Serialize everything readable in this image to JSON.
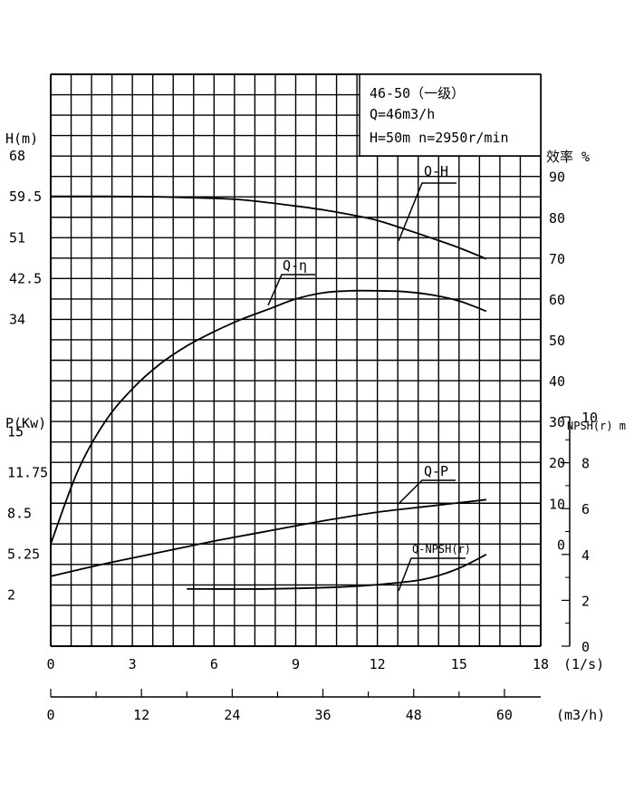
{
  "chart_data": {
    "type": "line",
    "info_box": [
      "46-50（一级）",
      "Q=46m3/h",
      "H=50m  n=2950r/min"
    ],
    "x_axes": {
      "flow_ls": {
        "label": "(1/s)",
        "ticks": [
          "0",
          "3",
          "6",
          "9",
          "12",
          "15",
          "18"
        ],
        "range": [
          0,
          18
        ]
      },
      "flow_m3h": {
        "label": "(m3/h)",
        "ticks": [
          "0",
          "12",
          "24",
          "36",
          "48",
          "60"
        ],
        "range": [
          0,
          64.8
        ]
      }
    },
    "y_axes": {
      "head": {
        "label": "H(m)",
        "ticks": [
          "68",
          "59.5",
          "51",
          "42.5",
          "34"
        ],
        "unit": "m"
      },
      "power": {
        "label": "P(Kw)",
        "ticks": [
          "15",
          "11.75",
          "8.5",
          "5.25",
          "2"
        ],
        "unit": "Kw"
      },
      "efficiency": {
        "label": "效率 %",
        "ticks": [
          "90",
          "80",
          "70",
          "60",
          "50",
          "40",
          "30",
          "20",
          "10",
          "0"
        ],
        "unit": "%"
      },
      "npsh": {
        "label": "NPSH(r) m",
        "ticks": [
          "10",
          "8",
          "6",
          "4",
          "2",
          "0"
        ],
        "range": [
          0,
          10
        ],
        "unit": "m"
      }
    },
    "series": [
      {
        "name": "Q-H",
        "axis": "head",
        "x": [
          0,
          2,
          4,
          6,
          7,
          8,
          9,
          10,
          11,
          12,
          13,
          14,
          15,
          16
        ],
        "y": [
          59.6,
          59.6,
          59.5,
          59.2,
          58.9,
          58.3,
          57.6,
          56.8,
          55.8,
          54.6,
          52.8,
          50.9,
          48.9,
          46.6
        ]
      },
      {
        "name": "Q-η",
        "axis": "efficiency",
        "x": [
          0,
          1,
          2,
          3,
          4,
          5,
          6,
          7,
          8,
          9,
          10,
          11,
          12,
          13,
          14,
          15,
          16
        ],
        "y": [
          0,
          18,
          30,
          38,
          44,
          48.5,
          52,
          55,
          57.5,
          60,
          61.5,
          62,
          62,
          61.8,
          61,
          59.5,
          57
        ]
      },
      {
        "name": "Q-P",
        "axis": "power",
        "x": [
          0,
          2,
          4,
          6,
          8,
          10,
          12,
          14,
          16
        ],
        "y": [
          3.5,
          4.5,
          5.4,
          6.3,
          7.1,
          7.9,
          8.6,
          9.1,
          9.6
        ]
      },
      {
        "name": "Q-NPSH(r)",
        "axis": "npsh",
        "x": [
          5,
          8,
          11,
          13,
          14,
          15,
          16
        ],
        "y": [
          2.5,
          2.5,
          2.6,
          2.8,
          3.0,
          3.4,
          4.0
        ]
      }
    ],
    "grid": true
  }
}
